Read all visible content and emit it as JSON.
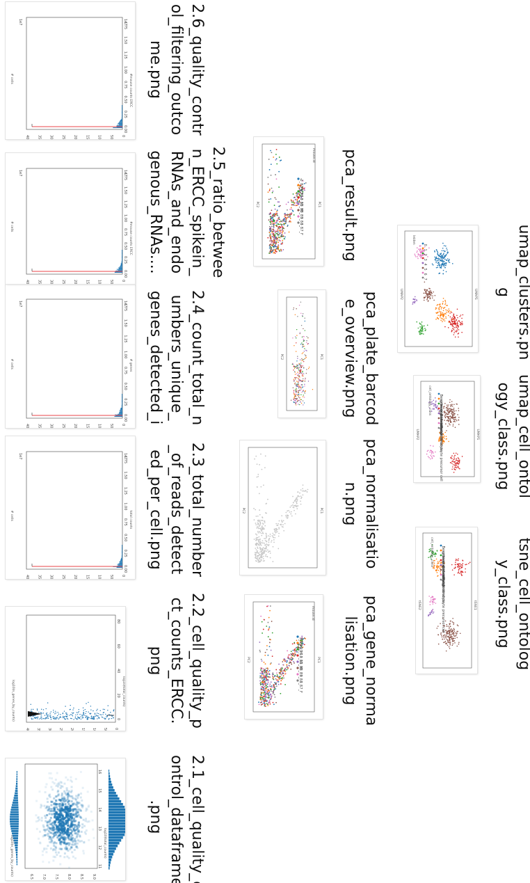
{
  "files": [
    {
      "id": "f1",
      "caption": [
        "2.1_cell_quality_c",
        "ontrol_dataframe",
        ".png"
      ]
    },
    {
      "id": "f2",
      "caption": [
        "2.2_cell_quality_p",
        "ct_counts_ERCC.",
        "png"
      ]
    },
    {
      "id": "f3",
      "caption": [
        "2.3_total_number",
        "_of_reads_detect",
        "ed_per_cell.png"
      ]
    },
    {
      "id": "f4",
      "caption": [
        "2.4_count_total_n",
        "umbers_unique_",
        "genes_detected_i"
      ]
    },
    {
      "id": "f5",
      "caption": [
        "2.5_ratio_betwee",
        "n_ERCC_spikein_",
        "RNAs_and_endo",
        "genous_RNAs...."
      ]
    },
    {
      "id": "f6",
      "caption": [
        "2.6_quality_contr",
        "ol_filtering_outco",
        "me.png"
      ]
    },
    {
      "id": "f7",
      "caption": [
        "pca_gene_norma",
        "lisation.png"
      ]
    },
    {
      "id": "f8",
      "caption": [
        "pca_normalisatio",
        "n.png"
      ]
    },
    {
      "id": "f9",
      "caption": [
        "pca_plate_barcod",
        "e_overview.png"
      ]
    },
    {
      "id": "f10",
      "caption": [
        "pca_result.png"
      ]
    },
    {
      "id": "f11",
      "caption": [
        "tsne_cell_ontolog",
        "y_class.png"
      ]
    },
    {
      "id": "f12",
      "caption": [
        "umap_cell_ontol",
        "ogy_class.png"
      ]
    },
    {
      "id": "f13",
      "caption": [
        "umap_clusters.pn",
        "g"
      ]
    }
  ],
  "plots": {
    "hist_ticks": [
      "400",
      "350",
      "300",
      "250",
      "200",
      "150",
      "100",
      "50",
      "0"
    ],
    "hist_xticks": [
      "0.00",
      "0.25",
      "0.50",
      "0.75",
      "1.00",
      "1.25",
      "1.50",
      "1.75"
    ],
    "hist_ylabel": "# cells",
    "hist_xlabels": {
      "f3": "total counts",
      "f4": "# genes",
      "f5": "#mouse counts ERCC",
      "f6": "#mouse counts ERCC"
    },
    "hist_exp": "1e7",
    "hist_top": "1e7",
    "f2_ylabel": "log10(n_genes_by_counts)",
    "f2_xlabel": "log10(total_counts)",
    "f2_xticks": [
      "0",
      "20",
      "40",
      "60",
      "80"
    ],
    "f1_xlabel": "log10(total_counts)",
    "f1_ylabel": "log10(n_genes_by_counts)",
    "f1_xticks": [
      "11",
      "12",
      "13",
      "14",
      "15",
      "16"
    ],
    "f1_yticks": [
      "6.5",
      "7.0",
      "7.5",
      "8.0",
      "8.5",
      "9.0"
    ],
    "pca_axis1": "PC1",
    "pca_axis2": "PC2",
    "legend_title_mouse": "mouse.id",
    "mouse_ids": [
      "3_8_M",
      "3_9_M",
      "3_10_M",
      "3_11_M",
      "3_38_F",
      "3_39_F",
      "3_56_F",
      "3_57_F"
    ],
    "ontology_title": "cell_ontology_class",
    "ontology_classes": [
      "Bergmann glial cell",
      "astrocyte",
      "brain pericyte",
      "endothelial cell",
      "macrophage",
      "neuron",
      "oligodendrocyte",
      "oligodendrocyte precursor cell"
    ],
    "leiden_title": "leiden",
    "umap_axis1": "UMAP1",
    "umap_axis2": "UMAP2",
    "tsne_axis1": "tSNE1",
    "tsne_axis2": "tSNE2"
  },
  "colors": {
    "bar": "#1f77b4",
    "redline": "#e8444a",
    "scatter_light": "#c8c8c8"
  }
}
